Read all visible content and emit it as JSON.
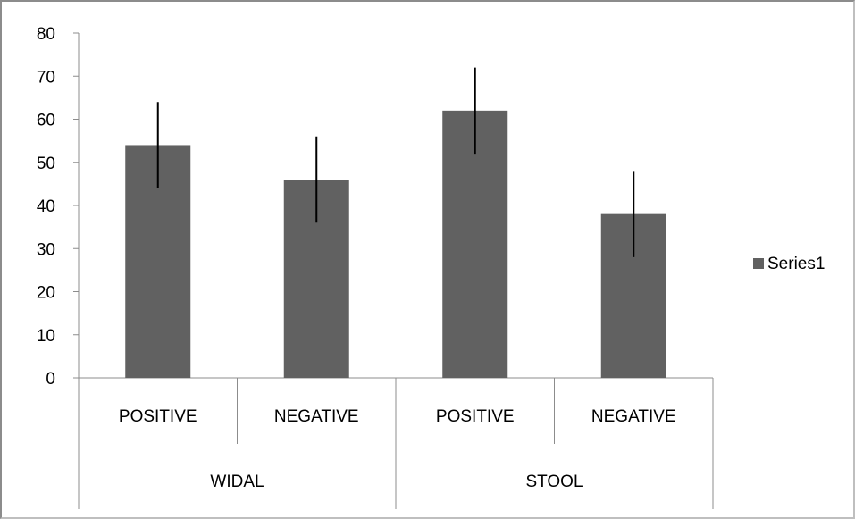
{
  "chart_data": {
    "type": "bar",
    "categories": [
      "POSITIVE",
      "NEGATIVE",
      "POSITIVE",
      "NEGATIVE"
    ],
    "groups": [
      {
        "label": "WIDAL",
        "span": [
          0,
          1
        ]
      },
      {
        "label": "STOOL",
        "span": [
          2,
          3
        ]
      }
    ],
    "series": [
      {
        "name": "Series1",
        "values": [
          54,
          46,
          62,
          38
        ],
        "error": [
          10,
          10,
          10,
          10
        ],
        "color": "#616161"
      }
    ],
    "yticks": [
      "0",
      "10",
      "20",
      "30",
      "40",
      "50",
      "60",
      "70",
      "80"
    ],
    "ylim": [
      0,
      80
    ],
    "grid": false,
    "legend": "right"
  }
}
